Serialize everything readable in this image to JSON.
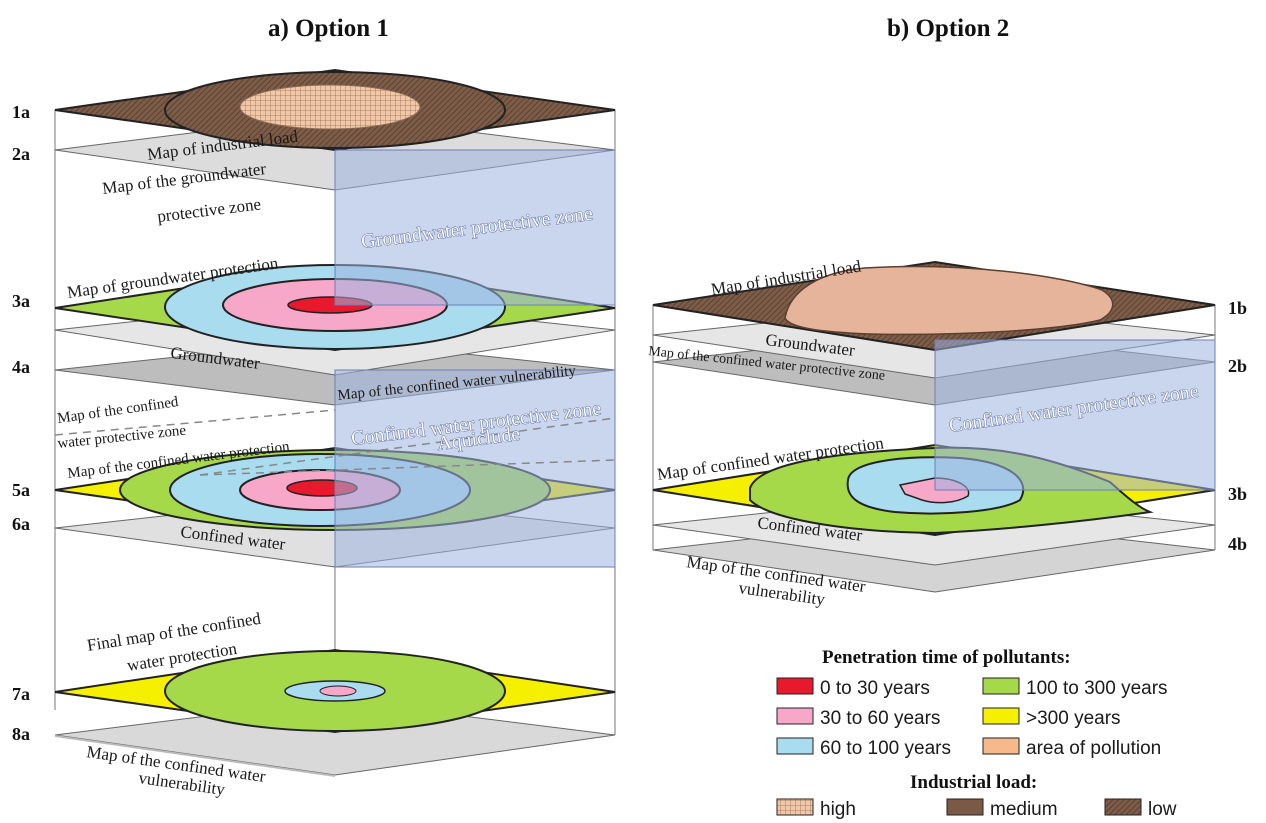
{
  "titles": {
    "option1": "a) Option 1",
    "option2": "b) Option 2"
  },
  "option1": {
    "layer_ids": [
      "1a",
      "2a",
      "3a",
      "4a",
      "5a",
      "6a",
      "7a",
      "8a"
    ],
    "labels": {
      "industrial_load": "Map of industrial load",
      "gw_zone_1": "Map of the groundwater",
      "gw_zone_2": "protective zone",
      "gw_protection": "Map of groundwater protection",
      "groundwater": "Groundwater",
      "cw_vulnerability": "Map of the confined water vulnerability",
      "cw_zone_1": "Map of the confined",
      "cw_zone_2": "water protective zone",
      "cw_protection": "Map of the confined water protection",
      "confined_water": "Confined water",
      "final_1": "Final map of the confined",
      "final_2": "water protection",
      "vuln_1": "Map of the confined water",
      "vuln_2": "vulnerability"
    },
    "zones": {
      "groundwater_zone": "Groundwater protective zone",
      "confined_zone": "Confined water protective zone",
      "aquiclude": "Aquiclude"
    }
  },
  "option2": {
    "layer_ids": [
      "1b",
      "2b",
      "3b",
      "4b"
    ],
    "labels": {
      "industrial_load": "Map of industrial load",
      "groundwater": "Groundwater",
      "cw_zone": "Map of the confined water protective zone",
      "cw_protection": "Map of confined water protection",
      "confined_water": "Confined water",
      "vuln_1": "Map of the confined water",
      "vuln_2": "vulnerability"
    },
    "zones": {
      "confined_zone": "Confined water protective zone"
    }
  },
  "legend": {
    "penetration_title": "Penetration time of pollutants:",
    "penetration_items": [
      {
        "label": "0 to 30 years",
        "color": "#e8192c"
      },
      {
        "label": "30 to 60 years",
        "color": "#f7a8c9"
      },
      {
        "label": "60 to 100 years",
        "color": "#a8dcee"
      },
      {
        "label": "100 to 300 years",
        "color": "#a6d94a"
      },
      {
        "label": ">300 years",
        "color": "#f5ef00"
      },
      {
        "label": "area of pollution",
        "color": "#f5b98a"
      }
    ],
    "industrial_title": "Industrial load:",
    "industrial_items": [
      {
        "label": "high",
        "pattern": "grid-light"
      },
      {
        "label": "medium",
        "pattern": "brown-solid"
      },
      {
        "label": "low",
        "pattern": "brown-hatch"
      }
    ]
  },
  "colors": {
    "red": "#e8192c",
    "pink": "#f7a8c9",
    "light_blue": "#a8dcee",
    "green": "#a6d94a",
    "yellow": "#f5ef00",
    "pollution": "#e6b49a",
    "brown": "#7a5a47",
    "zone_blue": "#9fb3e0",
    "grey_layer": "#d9d9d9"
  }
}
